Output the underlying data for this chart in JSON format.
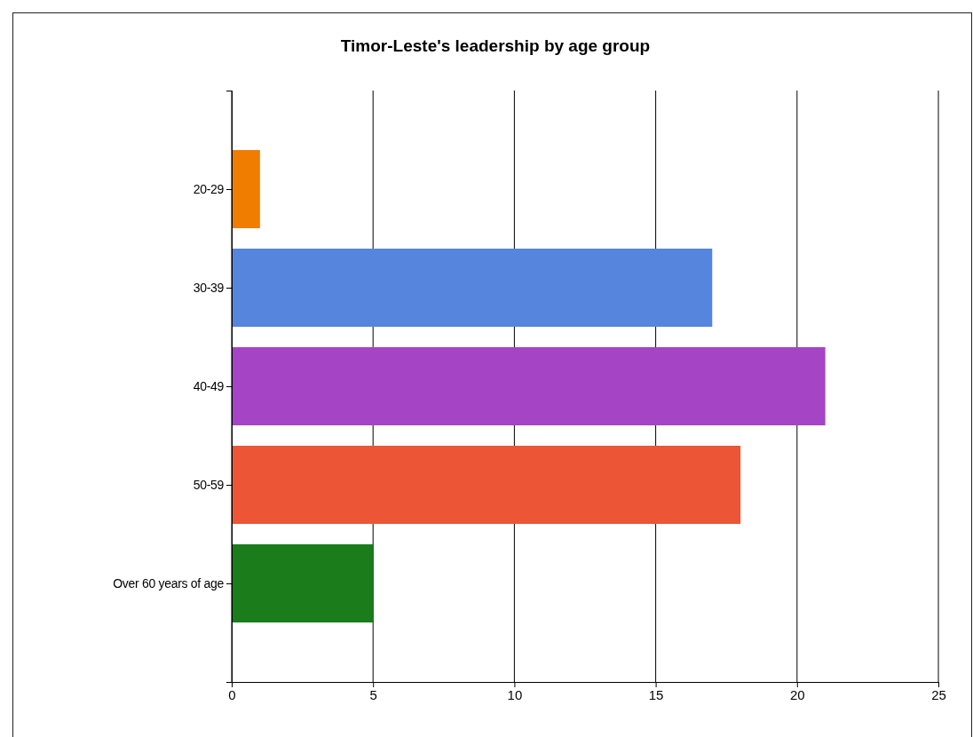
{
  "chart_data": {
    "type": "bar",
    "orientation": "horizontal",
    "title": "Timor-Leste's leadership by age group",
    "categories": [
      "20-29",
      "30-39",
      "40-49",
      "50-59",
      "Over 60 years of age"
    ],
    "values": [
      1,
      17,
      21,
      18,
      5
    ],
    "colors": [
      "#f07c00",
      "#5585dd",
      "#a544c4",
      "#ec5536",
      "#1a7c1a"
    ],
    "xlim": [
      0,
      25
    ],
    "xticks": [
      0,
      5,
      10,
      15,
      20,
      25
    ],
    "grid": "x"
  }
}
